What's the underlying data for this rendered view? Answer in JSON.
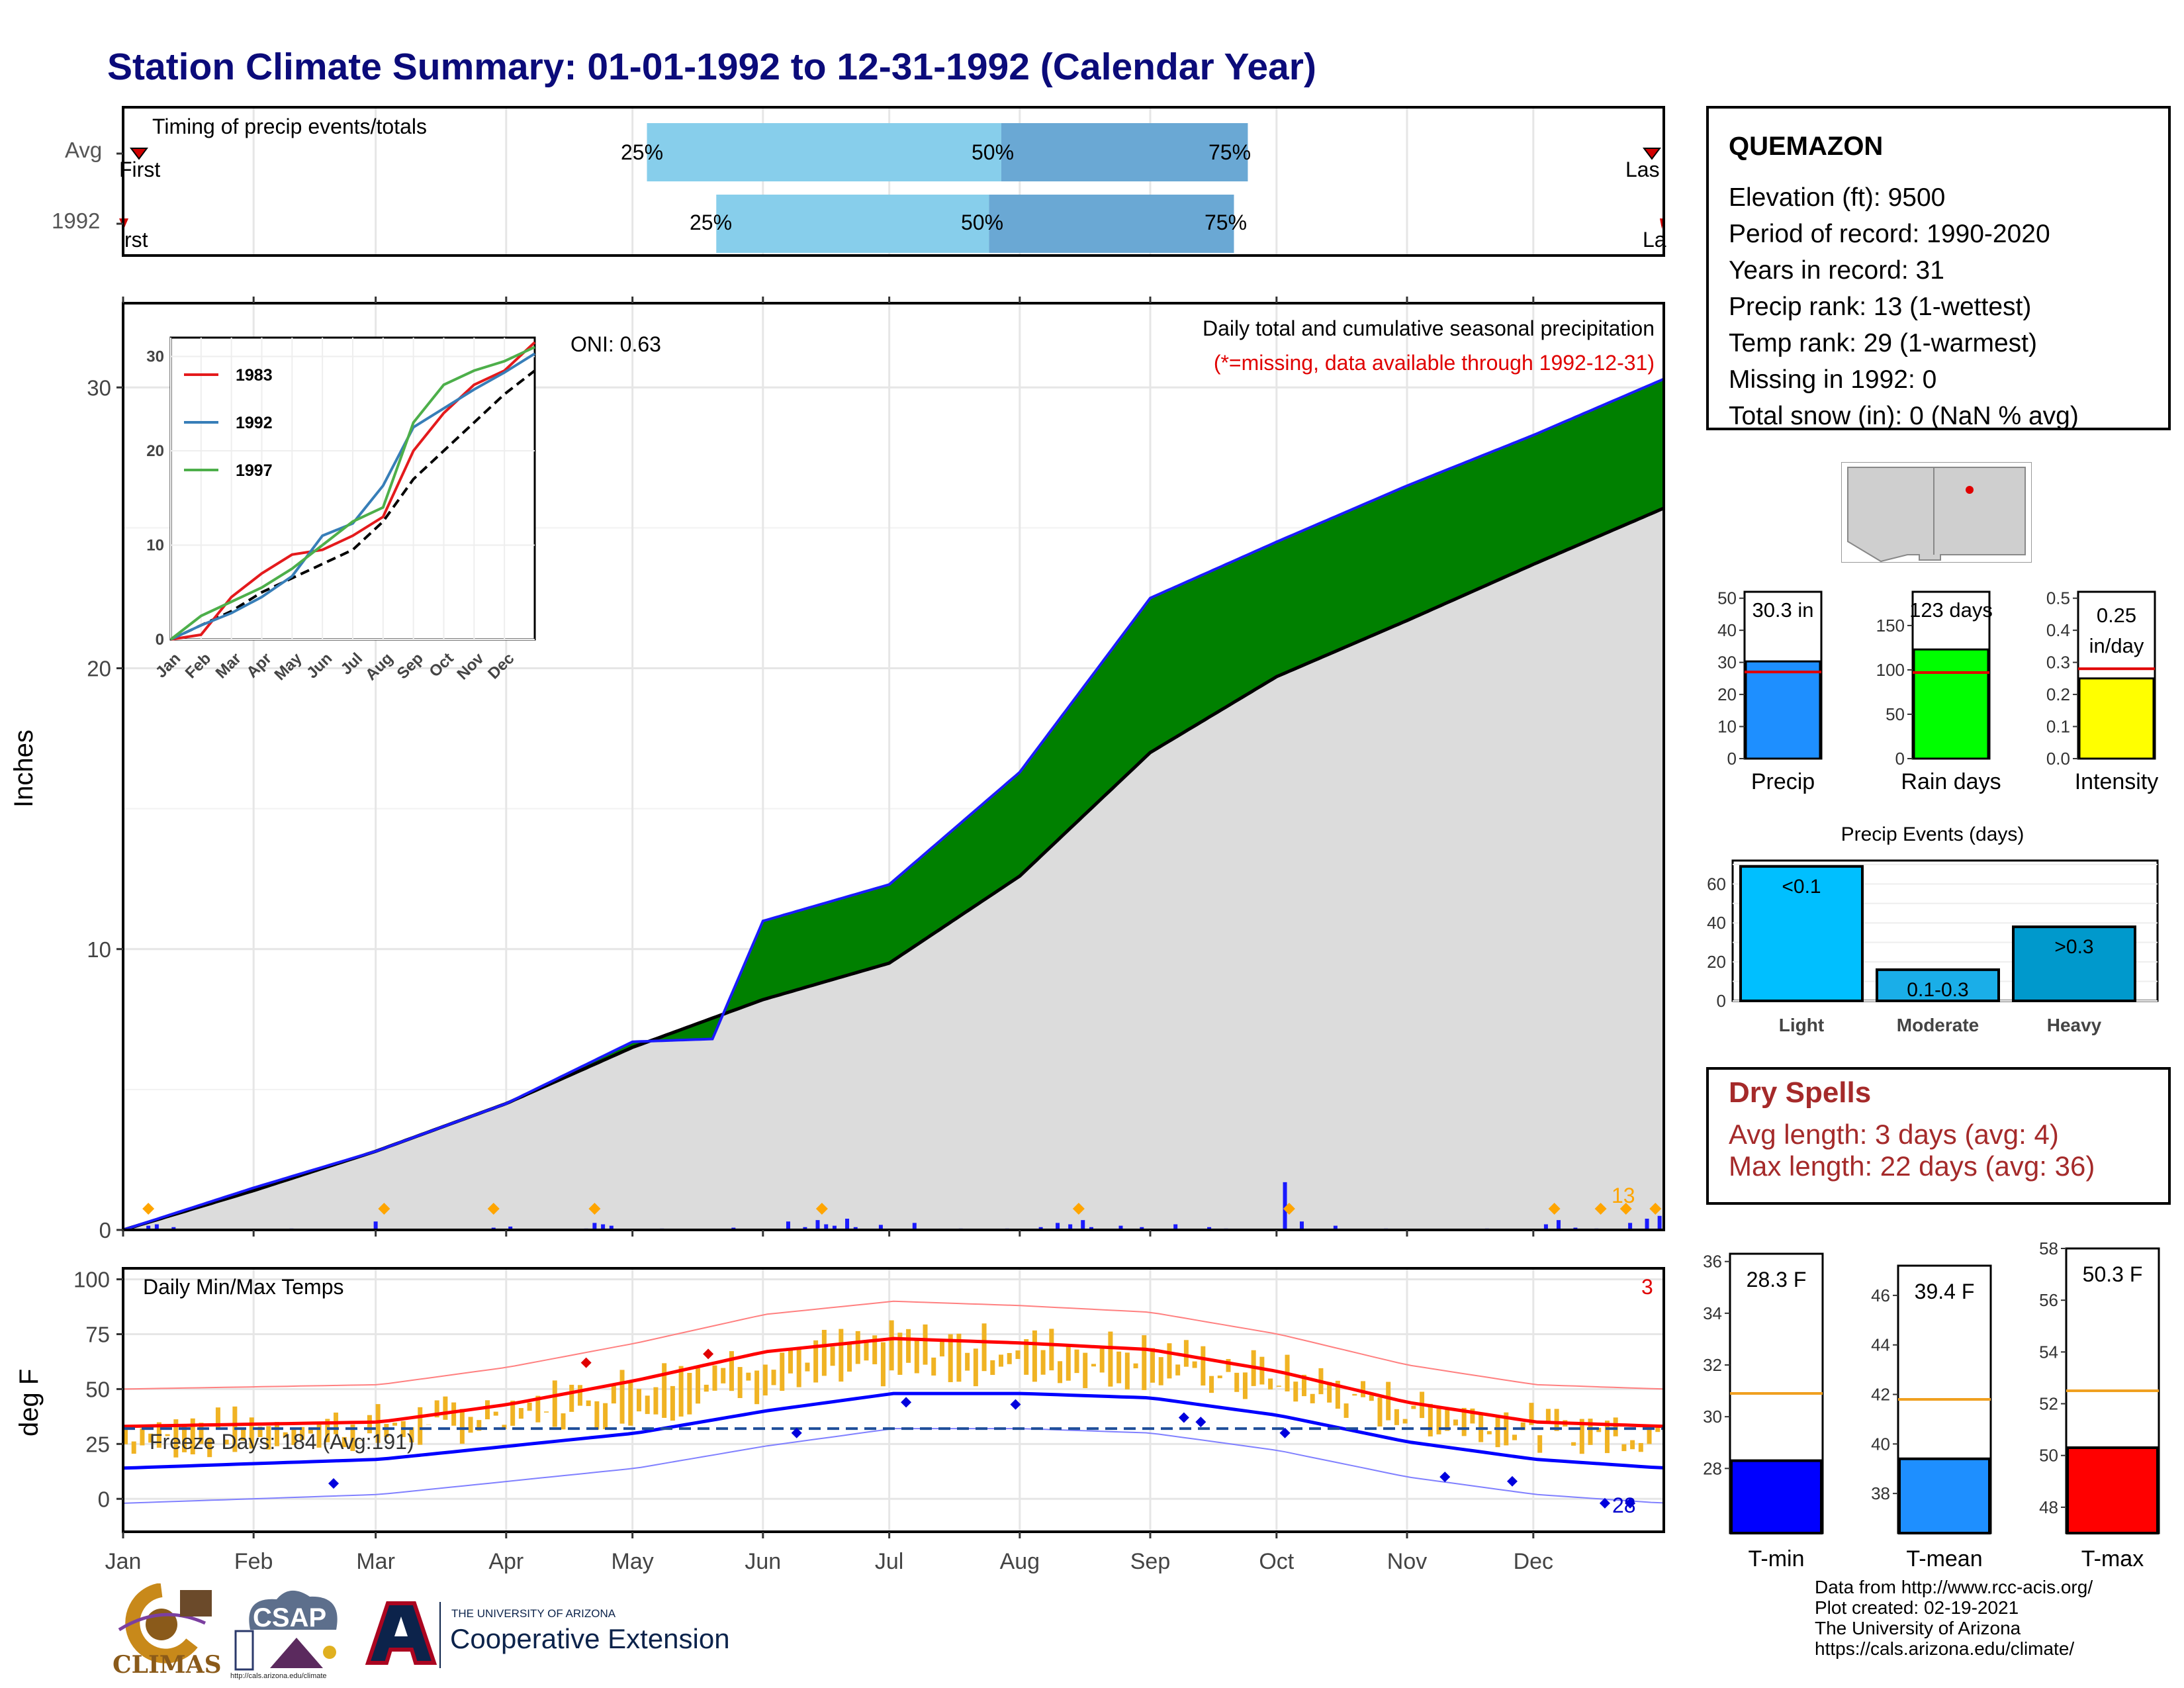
{
  "title": "Station Climate Summary: 01-01-1992 to 12-31-1992 (Calendar Year)",
  "timing": {
    "label": "Timing of precip events/totals",
    "rows": [
      "Avg",
      "1992"
    ],
    "first_label_avg": "First",
    "last_label_avg": "Las",
    "first_label_yr": "rst",
    "last_label_yr": "La",
    "avg_quantiles": {
      "q25": 0.34,
      "q50": 0.57,
      "q75": 0.73
    },
    "yr_quantiles": {
      "q25": 0.385,
      "q50": 0.562,
      "q75": 0.721
    },
    "q_labels": [
      "25%",
      "50%",
      "75%"
    ]
  },
  "precip_panel": {
    "ylabel": "Inches",
    "oni": "ONI: 0.63",
    "subtitle": "Daily total and cumulative seasonal precipitation",
    "missing_note": "(*=missing, data available through 1992-12-31)",
    "count_label": "13",
    "yticks": [
      "0",
      "10",
      "20",
      "30"
    ]
  },
  "inset": {
    "legend": [
      "1983",
      "1992",
      "1997"
    ],
    "yticks": [
      "0",
      "10",
      "20",
      "30"
    ],
    "months": [
      "Jan",
      "Feb",
      "Mar",
      "Apr",
      "May",
      "Jun",
      "Jul",
      "Aug",
      "Sep",
      "Oct",
      "Nov",
      "Dec"
    ]
  },
  "temp_panel": {
    "ylabel": "deg F",
    "label": "Daily Min/Max Temps",
    "freeze_label": "Freeze Days: 184 (Avg:191)",
    "hot_count": "3",
    "cold_count": "28",
    "yticks": [
      "0",
      "25",
      "50",
      "75",
      "100"
    ]
  },
  "months": [
    "Jan",
    "Feb",
    "Mar",
    "Apr",
    "May",
    "Jun",
    "Jul",
    "Aug",
    "Sep",
    "Oct",
    "Nov",
    "Dec"
  ],
  "station": {
    "name": "QUEMAZON",
    "elevation": "Elevation (ft): 9500",
    "period": "Period of record: 1990-2020",
    "years": "Years in record: 31",
    "precip_rank": "Precip rank: 13 (1-wettest)",
    "temp_rank": "Temp rank: 29 (1-warmest)",
    "missing": "Missing in 1992: 0",
    "snow": "Total snow (in): 0 (NaN % avg)"
  },
  "summary_bars": [
    {
      "label": "Precip",
      "value_text": "30.3 in",
      "value": 30.3,
      "avg": 27,
      "max": 52,
      "color": "#1e8fff",
      "yticks": [
        "0",
        "10",
        "20",
        "30",
        "40",
        "50"
      ]
    },
    {
      "label": "Rain days",
      "value_text": "123 days",
      "value": 123,
      "avg": 97,
      "max": 188,
      "color": "#00ff00",
      "yticks": [
        "0",
        "50",
        "100",
        "150"
      ]
    },
    {
      "label": "Intensity",
      "value_text": "0.25 in/day",
      "value": 0.25,
      "avg": 0.28,
      "max": 0.52,
      "color": "#ffff00",
      "yticks": [
        "0.0",
        "0.1",
        "0.2",
        "0.3",
        "0.4",
        "0.5"
      ]
    }
  ],
  "events": {
    "title": "Precip Events (days)",
    "categories": [
      "Light",
      "Moderate",
      "Heavy"
    ],
    "labels": [
      "<0.1",
      "0.1-0.3",
      ">0.3"
    ],
    "values": [
      69,
      16,
      38
    ],
    "colors": [
      "#00bfff",
      "#1aaee8",
      "#0099cc"
    ],
    "yticks": [
      "0",
      "20",
      "40",
      "60"
    ]
  },
  "dry_spells": {
    "title": "Dry Spells",
    "avg": "Avg length: 3 days (avg: 4)",
    "max": "Max length: 22 days (avg: 36)"
  },
  "temp_bars": [
    {
      "label": "T-min",
      "value_text": "28.3 F",
      "value": 28.3,
      "avg": 30.9,
      "min": 25.5,
      "max": 36.3,
      "color": "#0000ff",
      "yticks": [
        "28",
        "30",
        "32",
        "34",
        "36"
      ]
    },
    {
      "label": "T-mean",
      "value_text": "39.4 F",
      "value": 39.4,
      "avg": 41.8,
      "min": 36.4,
      "max": 47.2,
      "color": "#1e8fff",
      "yticks": [
        "38",
        "40",
        "42",
        "44",
        "46"
      ]
    },
    {
      "label": "T-max",
      "value_text": "50.3 F",
      "value": 50.3,
      "avg": 52.5,
      "min": 47.0,
      "max": 58.0,
      "color": "#ff0000",
      "yticks": [
        "48",
        "50",
        "52",
        "54",
        "56",
        "58"
      ]
    }
  ],
  "logos": {
    "climas": "CLIMAS",
    "csap": "CSAP",
    "csap_url": "http://cals.arizona.edu/climate",
    "ua_top": "THE UNIVERSITY OF ARIZONA",
    "ua_bottom": "Cooperative Extension"
  },
  "credits": [
    "Data from http://www.rcc-acis.org/",
    "Plot created: 02-19-2021",
    "The University of Arizona",
    "https://cals.arizona.edu/climate/"
  ],
  "chart_data": [
    {
      "type": "bar",
      "title": "Precip",
      "categories": [
        "1992"
      ],
      "values": [
        30.3
      ],
      "ylim": [
        0,
        52
      ]
    },
    {
      "type": "bar",
      "title": "Precip Events (days)",
      "categories": [
        "Light",
        "Moderate",
        "Heavy"
      ],
      "values": [
        69,
        16,
        38
      ],
      "ylim": [
        0,
        72
      ]
    },
    {
      "type": "bar",
      "title": "",
      "categories": [
        "T-min",
        "T-mean",
        "T-max"
      ],
      "values": [
        28.3,
        39.4,
        50.3
      ]
    },
    {
      "type": "area",
      "title": "Daily total and cumulative seasonal precipitation",
      "ylabel": "Inches",
      "ylim": [
        0,
        33
      ],
      "x": [
        "Jan",
        "Feb",
        "Mar",
        "Apr",
        "May",
        "Jun",
        "Jul",
        "Aug",
        "Sep",
        "Oct",
        "Nov",
        "Dec",
        "Dec31"
      ],
      "series": [
        {
          "name": "",
          "values": [
            0,
            1.5,
            2.8,
            4.5,
            6.7,
            11,
            12.3,
            16.3,
            22.5,
            24.5,
            26.5,
            28.3,
            30.3
          ]
        },
        {
          "name": "",
          "values": [
            0,
            1.4,
            2.8,
            4.5,
            6.5,
            8.2,
            9.5,
            12.6,
            17.0,
            19.7,
            21.7,
            23.7,
            25.7
          ]
        }
      ]
    },
    {
      "type": "line",
      "title": "Daily Min/Max Temps",
      "ylabel": "deg F",
      "ylim": [
        -15,
        105
      ],
      "x": [
        "Jan",
        "Feb",
        "Mar",
        "Apr",
        "May",
        "Jun",
        "Jul",
        "Aug",
        "Sep",
        "Oct",
        "Nov",
        "Dec",
        "Dec31"
      ],
      "series": [
        {
          "name": "",
          "values": [
            33,
            34,
            35,
            43,
            54,
            67,
            73,
            71,
            68,
            58,
            44,
            35,
            33
          ]
        },
        {
          "name": "",
          "values": [
            14,
            16,
            18,
            24,
            30,
            40,
            48,
            48,
            46,
            38,
            26,
            18,
            14
          ]
        }
      ]
    }
  ]
}
